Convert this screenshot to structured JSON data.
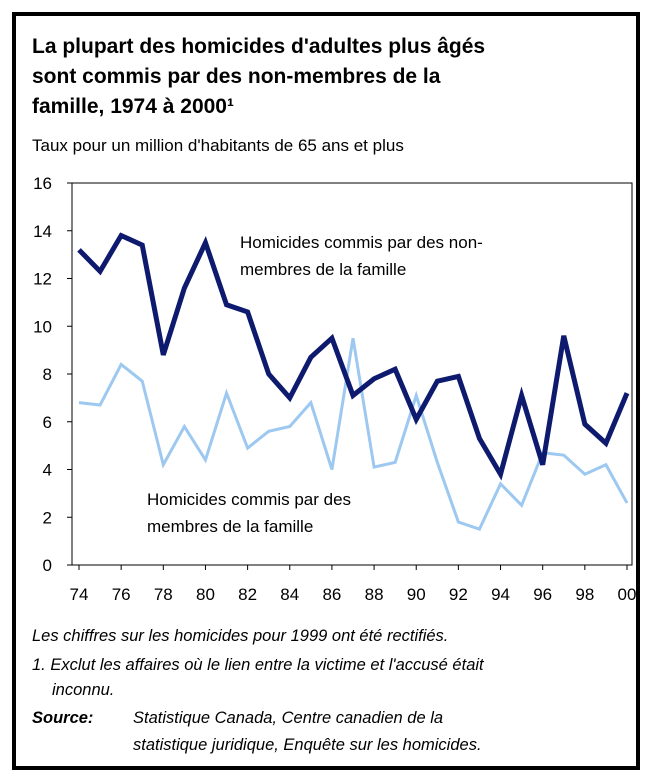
{
  "chart_data": {
    "type": "line",
    "title": [
      "La plupart des homicides d'adultes plus âgés",
      "sont commis par des non-membres de la",
      "famille, 1974 à 2000¹"
    ],
    "subtitle": "Taux pour un million d'habitants de 65 ans et plus",
    "x": [
      1974,
      1975,
      1976,
      1977,
      1978,
      1979,
      1980,
      1981,
      1982,
      1983,
      1984,
      1985,
      1986,
      1987,
      1988,
      1989,
      1990,
      1991,
      1992,
      1993,
      1994,
      1995,
      1996,
      1997,
      1998,
      1999,
      2000
    ],
    "xlim": [
      1974,
      2000
    ],
    "xticks": [
      {
        "value": 1974,
        "label": "74"
      },
      {
        "value": 1976,
        "label": "76"
      },
      {
        "value": 1978,
        "label": "78"
      },
      {
        "value": 1980,
        "label": "80"
      },
      {
        "value": 1982,
        "label": "82"
      },
      {
        "value": 1984,
        "label": "84"
      },
      {
        "value": 1986,
        "label": "86"
      },
      {
        "value": 1988,
        "label": "88"
      },
      {
        "value": 1990,
        "label": "90"
      },
      {
        "value": 1992,
        "label": "92"
      },
      {
        "value": 1994,
        "label": "94"
      },
      {
        "value": 1996,
        "label": "96"
      },
      {
        "value": 1998,
        "label": "98"
      },
      {
        "value": 2000,
        "label": "00"
      }
    ],
    "ylim": [
      0,
      16
    ],
    "yticks": [
      0,
      2,
      4,
      6,
      8,
      10,
      12,
      14,
      16
    ],
    "series": [
      {
        "label": [
          "Homicides commis par des non-",
          "membres de la famille"
        ],
        "color": "#0d1a6e",
        "width": 5,
        "values": [
          13.2,
          12.3,
          13.8,
          13.4,
          8.8,
          11.6,
          13.5,
          10.9,
          10.6,
          8.0,
          7.0,
          8.7,
          9.5,
          7.1,
          7.8,
          8.2,
          6.1,
          7.7,
          7.9,
          5.3,
          3.8,
          7.1,
          4.2,
          9.6,
          5.9,
          5.1,
          7.2
        ]
      },
      {
        "label": [
          "Homicides commis par des",
          "membres de la famille"
        ],
        "color": "#9dc8f0",
        "width": 3,
        "values": [
          6.8,
          6.7,
          8.4,
          7.7,
          4.2,
          5.8,
          4.4,
          7.2,
          4.9,
          5.6,
          5.8,
          6.8,
          4.0,
          9.5,
          4.1,
          4.3,
          7.1,
          4.3,
          1.8,
          1.5,
          3.4,
          2.5,
          4.7,
          4.6,
          3.8,
          4.2,
          2.6
        ]
      }
    ],
    "note": "Les chiffres sur les homicides pour 1999 ont été rectifiés.",
    "footnote": [
      "1.  Exclut les affaires où le lien entre la victime et l'accusé était",
      "inconnu."
    ],
    "source_label": "Source:",
    "source": [
      "Statistique Canada, Centre canadien de la",
      "statistique juridique, Enquête sur les homicides."
    ]
  }
}
